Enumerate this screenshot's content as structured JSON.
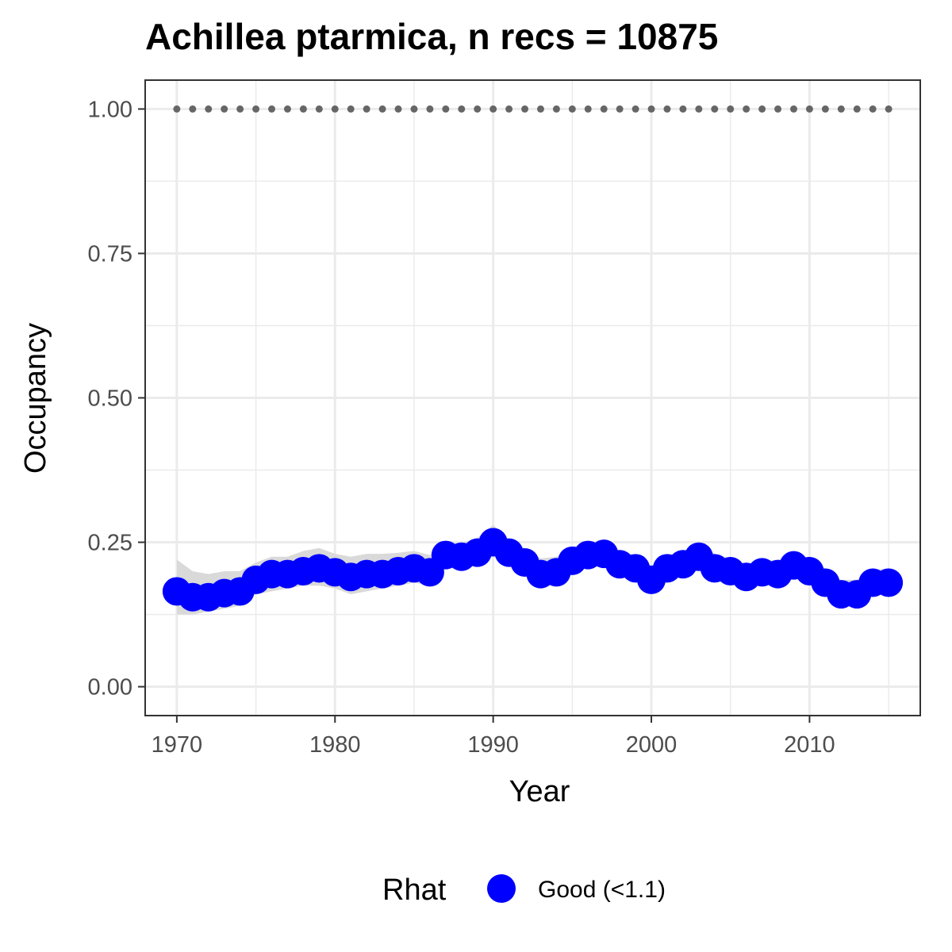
{
  "chart_data": {
    "type": "line",
    "title": "Achillea ptarmica, n recs = 10875",
    "xlabel": "Year",
    "ylabel": "Occupancy",
    "xlim": [
      1968,
      2017
    ],
    "ylim": [
      -0.05,
      1.05
    ],
    "x_ticks": [
      1970,
      1980,
      1990,
      2000,
      2010
    ],
    "x_tick_labels": [
      "1970",
      "1980",
      "1990",
      "2000",
      "2010"
    ],
    "y_ticks": [
      0,
      0.25,
      0.5,
      0.75,
      1.0
    ],
    "y_tick_labels": [
      "0.00",
      "0.25",
      "0.50",
      "0.75",
      "1.00"
    ],
    "grid": true,
    "legend_position": "bottom",
    "legend": {
      "title": "Rhat",
      "entries": [
        {
          "label": "Good (<1.1)",
          "color": "#0000ff"
        }
      ]
    },
    "colors": {
      "points": "#0000ff",
      "ribbon": "#d9d9d9",
      "reference_dots": "#666666",
      "grid": "#ebebeb",
      "panel_border": "#333333"
    },
    "x": [
      1970,
      1971,
      1972,
      1973,
      1974,
      1975,
      1976,
      1977,
      1978,
      1979,
      1980,
      1981,
      1982,
      1983,
      1984,
      1985,
      1986,
      1987,
      1988,
      1989,
      1990,
      1991,
      1992,
      1993,
      1994,
      1995,
      1996,
      1997,
      1998,
      1999,
      2000,
      2001,
      2002,
      2003,
      2004,
      2005,
      2006,
      2007,
      2008,
      2009,
      2010,
      2011,
      2012,
      2013,
      2014,
      2015
    ],
    "series": [
      {
        "values": [
          0.165,
          0.155,
          0.155,
          0.162,
          0.165,
          0.185,
          0.195,
          0.195,
          0.2,
          0.205,
          0.198,
          0.19,
          0.195,
          0.195,
          0.2,
          0.205,
          0.198,
          0.228,
          0.225,
          0.232,
          0.25,
          0.232,
          0.215,
          0.195,
          0.198,
          0.218,
          0.228,
          0.23,
          0.212,
          0.205,
          0.185,
          0.205,
          0.212,
          0.225,
          0.205,
          0.2,
          0.19,
          0.198,
          0.195,
          0.21,
          0.2,
          0.18,
          0.16,
          0.16,
          0.18,
          0.18
        ],
        "lower": [
          0.125,
          0.125,
          0.13,
          0.135,
          0.14,
          0.16,
          0.165,
          0.17,
          0.175,
          0.175,
          0.17,
          0.16,
          0.165,
          0.17,
          0.175,
          0.18,
          0.175,
          0.205,
          0.205,
          0.21,
          0.225,
          0.21,
          0.195,
          0.175,
          0.178,
          0.198,
          0.208,
          0.208,
          0.19,
          0.183,
          0.165,
          0.185,
          0.19,
          0.203,
          0.183,
          0.18,
          0.172,
          0.178,
          0.175,
          0.19,
          0.18,
          0.16,
          0.14,
          0.14,
          0.16,
          0.16
        ],
        "upper": [
          0.22,
          0.2,
          0.195,
          0.2,
          0.2,
          0.215,
          0.225,
          0.225,
          0.235,
          0.24,
          0.23,
          0.225,
          0.23,
          0.23,
          0.232,
          0.235,
          0.228,
          0.25,
          0.248,
          0.258,
          0.28,
          0.255,
          0.24,
          0.222,
          0.225,
          0.242,
          0.25,
          0.252,
          0.235,
          0.228,
          0.21,
          0.228,
          0.235,
          0.248,
          0.23,
          0.222,
          0.212,
          0.22,
          0.218,
          0.232,
          0.222,
          0.205,
          0.185,
          0.185,
          0.202,
          0.205
        ]
      },
      {
        "values": [
          1,
          1,
          1,
          1,
          1,
          1,
          1,
          1,
          1,
          1,
          1,
          1,
          1,
          1,
          1,
          1,
          1,
          1,
          1,
          1,
          1,
          1,
          1,
          1,
          1,
          1,
          1,
          1,
          1,
          1,
          1,
          1,
          1,
          1,
          1,
          1,
          1,
          1,
          1,
          1,
          1,
          1,
          1,
          1,
          1,
          1
        ]
      }
    ]
  }
}
